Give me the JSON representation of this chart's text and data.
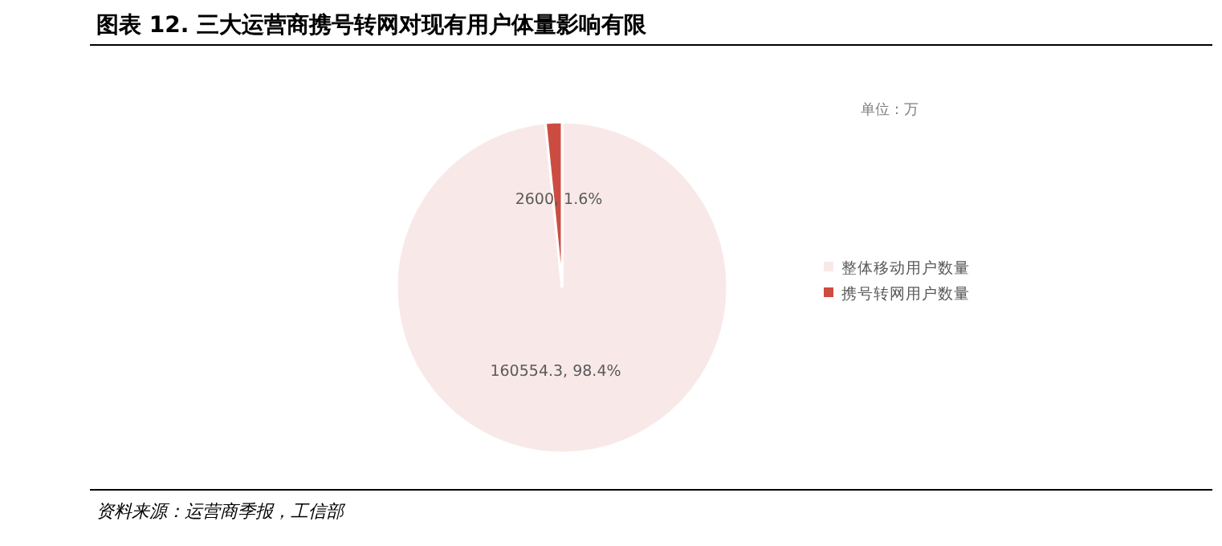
{
  "chart_data": {
    "type": "pie",
    "title": "图表 12. 三大运营商携号转网对现有用户体量影响有限",
    "categories": [
      "整体移动用户数量",
      "携号转网用户数量"
    ],
    "values": [
      160554.3,
      2600
    ],
    "colors": [
      "#f8e9e8",
      "#cc4c41"
    ],
    "value_labels": [
      "160554.3, 98.4%",
      "2600, 1.6%"
    ],
    "legend": "right",
    "annotations": [
      "单位：万",
      "资料来源：运营商季报，工信部"
    ]
  }
}
